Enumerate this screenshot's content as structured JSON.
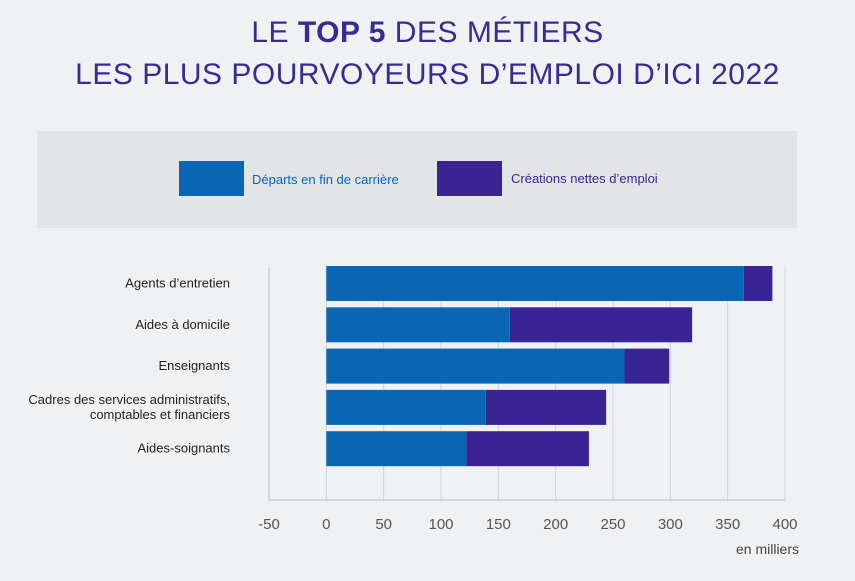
{
  "title": {
    "line1_pre": "LE ",
    "line1_bold": "TOP 5",
    "line1_post": " DES MÉTIERS",
    "line2": "LES PLUS POURVOYEURS D’EMPLOI D’ICI 2022"
  },
  "colors": {
    "departs": "#0866b4",
    "creations": "#3a2392",
    "title": "#3a2a96"
  },
  "chart_data": {
    "type": "bar",
    "orientation": "horizontal",
    "stacked": true,
    "categories": [
      [
        "Agents d’entretien"
      ],
      [
        "Aides à domicile"
      ],
      [
        "Enseignants"
      ],
      [
        "Cadres des services administratifs,",
        "comptables et financiers"
      ],
      [
        "Aides-soignants"
      ]
    ],
    "series": [
      {
        "name": "Départs en fin de carrière",
        "values": [
          364,
          160,
          260,
          139,
          122
        ]
      },
      {
        "name": "Créations nettes d’emploi",
        "values": [
          25,
          159,
          39,
          105,
          107
        ]
      }
    ],
    "xlim": [
      -50,
      400
    ],
    "xticks": [
      "-50",
      "0",
      "50",
      "100",
      "150",
      "200",
      "250",
      "300",
      "350",
      "400"
    ],
    "xunit": "en milliers",
    "grid": true,
    "legend": "top"
  }
}
